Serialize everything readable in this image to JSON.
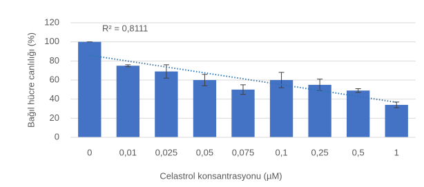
{
  "chart_data": {
    "type": "bar",
    "y_label": "Bağıl hücre canlılığı (%)",
    "x_label": "Celastrol konsantrasyonu (µM)",
    "annotation": "R² = 0,8111",
    "categories": [
      "0",
      "0,01",
      "0,025",
      "0,05",
      "0,075",
      "0,1",
      "0,25",
      "0,5",
      "1"
    ],
    "values": [
      100,
      75,
      69,
      60,
      50,
      60,
      55,
      49,
      34
    ],
    "errors": [
      0,
      1,
      7,
      6,
      5,
      8,
      6,
      2,
      3
    ],
    "color": "#4472c4",
    "trendline": true,
    "trendline_color": "#2e75b6",
    "ylim": [
      0,
      120
    ],
    "yticks": [
      0,
      20,
      40,
      60,
      80,
      100,
      120
    ],
    "grid": true
  }
}
